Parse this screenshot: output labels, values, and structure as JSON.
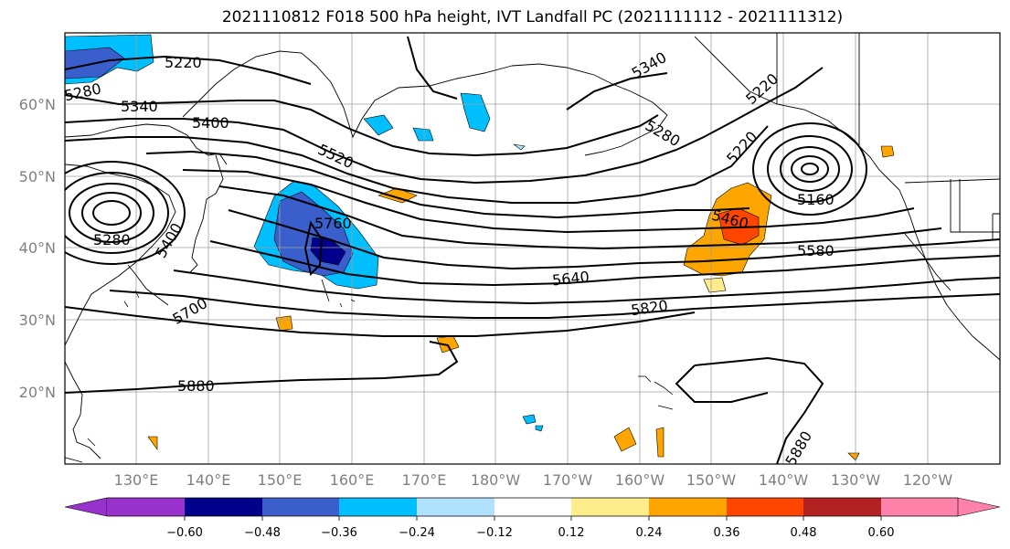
{
  "title": "2021110812 F018 500 hPa height, IVT Landfall PC (2021111112 - 2021111312)",
  "map": {
    "lat_labels": [
      "60°N",
      "50°N",
      "40°N",
      "30°N",
      "20°N"
    ],
    "lon_labels": [
      "130°E",
      "140°E",
      "150°E",
      "160°E",
      "170°E",
      "180°W",
      "170°W",
      "160°W",
      "150°W",
      "140°W",
      "130°W",
      "120°W"
    ],
    "contour_labels": [
      "5220",
      "5280",
      "5340",
      "5400",
      "5520",
      "5760",
      "5280",
      "5400",
      "5700",
      "5880",
      "5640",
      "5820",
      "5460",
      "5580",
      "5160",
      "5220",
      "5220",
      "5280",
      "5880",
      "5340"
    ]
  },
  "colorbar": {
    "tick_labels": [
      "−0.60",
      "−0.48",
      "−0.36",
      "−0.24",
      "−0.12",
      "0.12",
      "0.24",
      "0.36",
      "0.48",
      "0.60"
    ],
    "colors": [
      "#9932cc",
      "#00008b",
      "#3a5fcd",
      "#00bfff",
      "#b0e2ff",
      "#ffffff",
      "#ffec8b",
      "#ffa500",
      "#ff4500",
      "#b22222",
      "#ff82ab"
    ]
  }
}
